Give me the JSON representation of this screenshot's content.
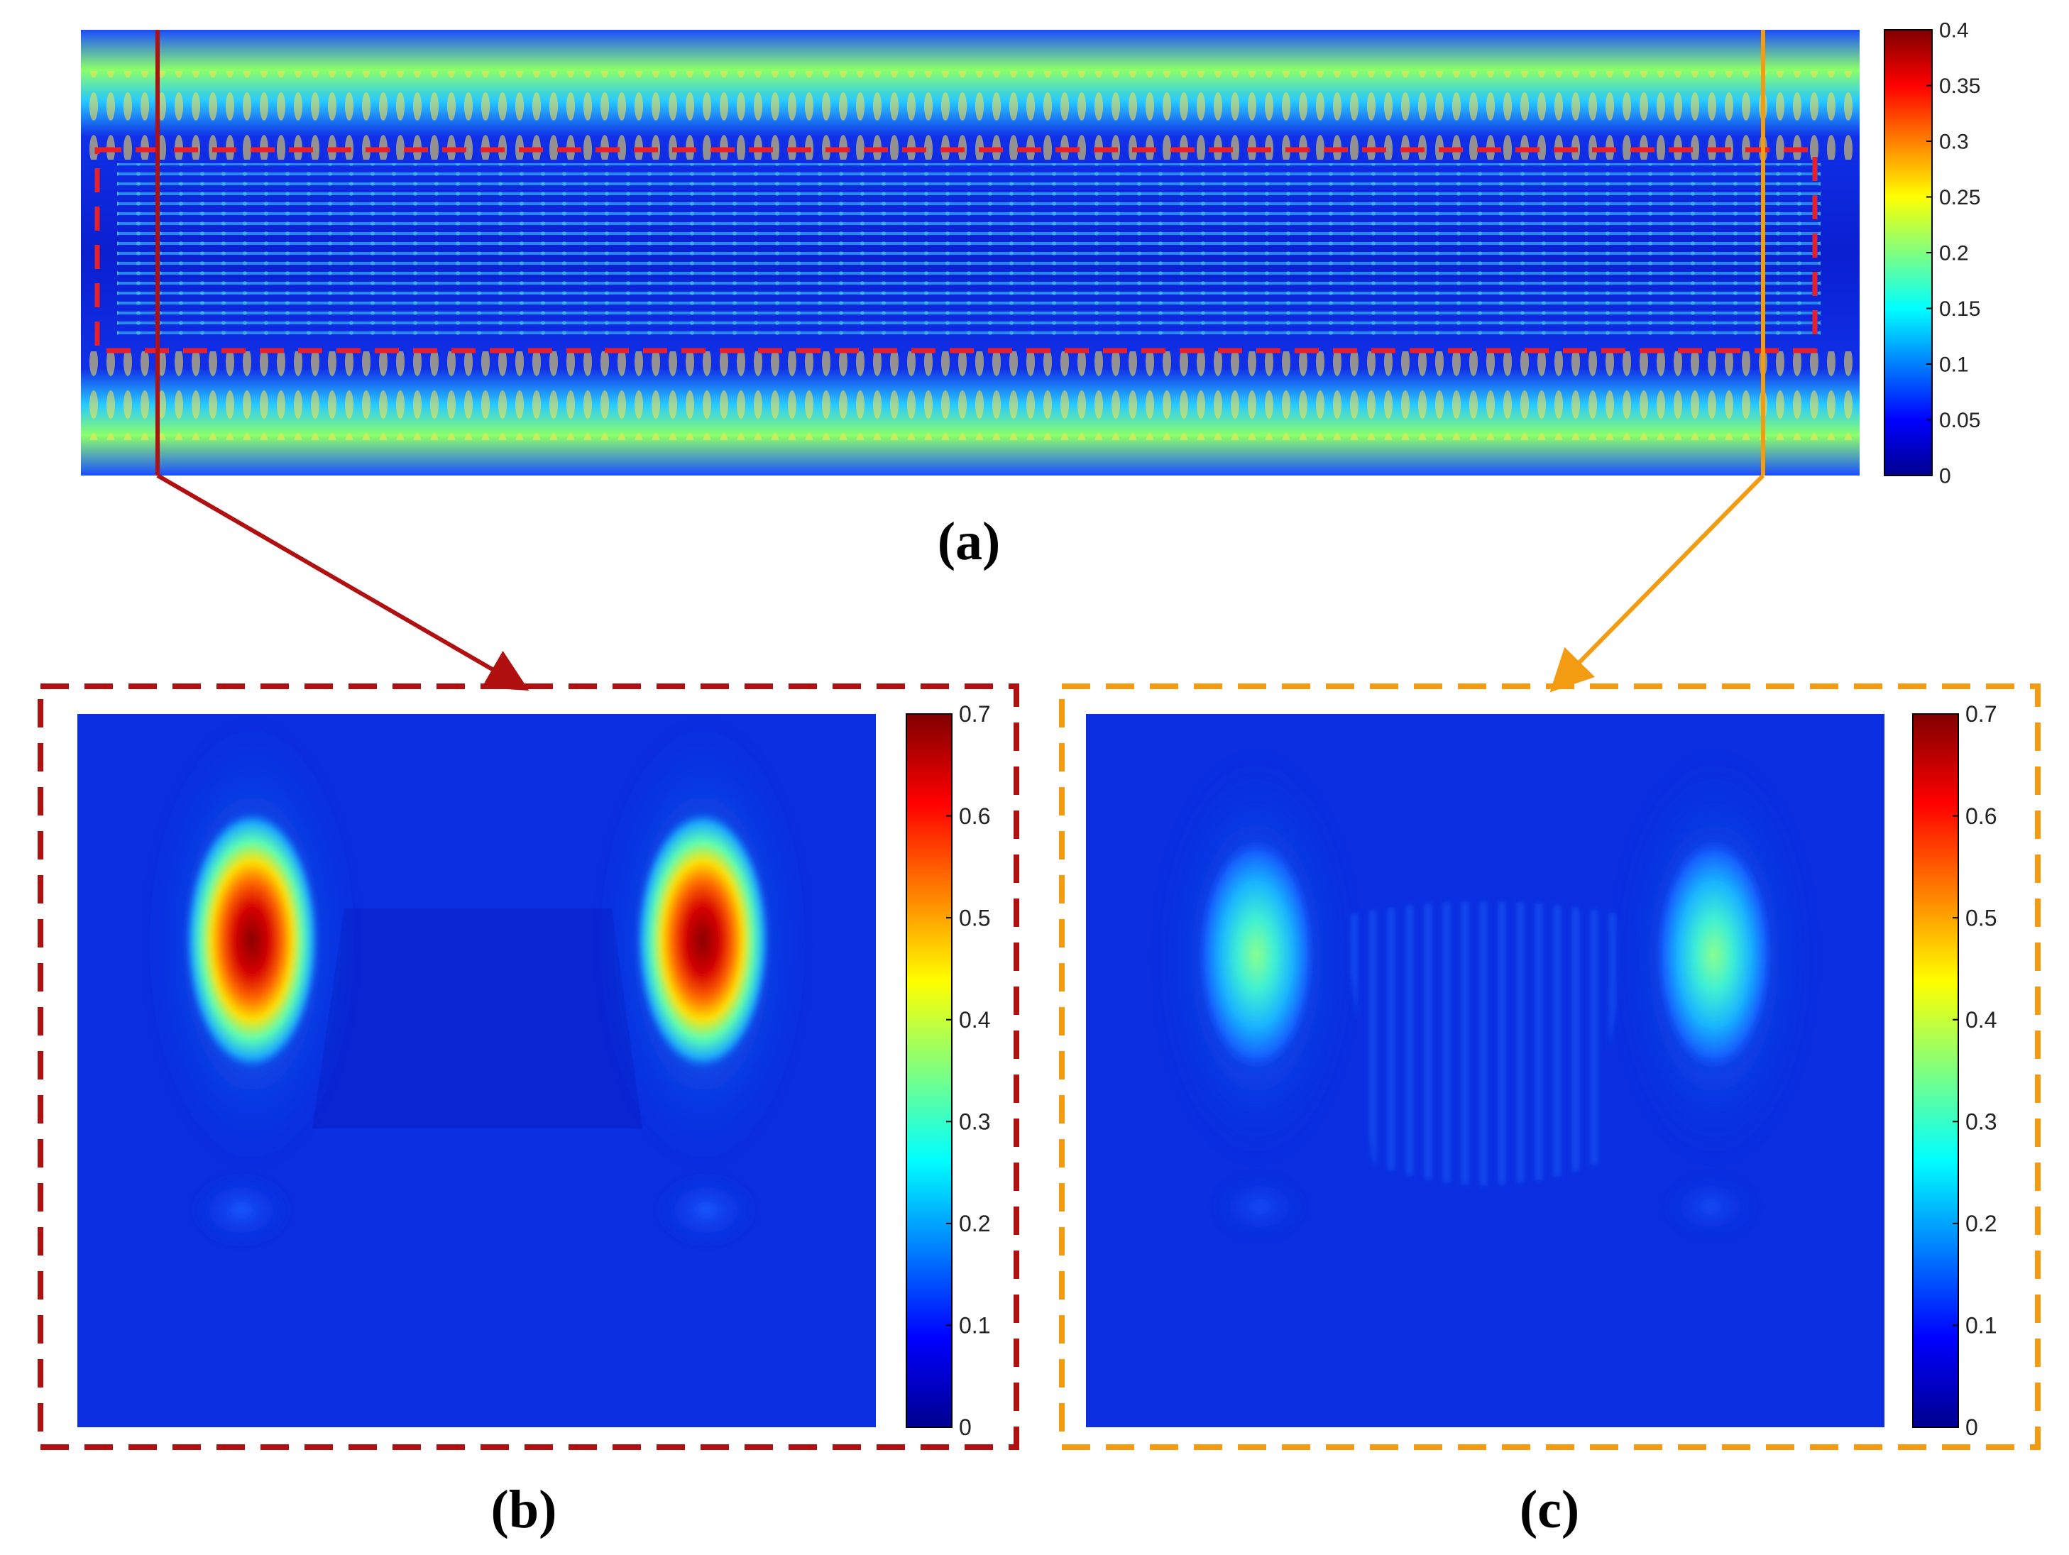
{
  "figure": {
    "panels": [
      {
        "id": "a",
        "caption": "(a)"
      },
      {
        "id": "b",
        "caption": "(b)"
      },
      {
        "id": "c",
        "caption": "(c)"
      }
    ]
  },
  "chart_data": [
    {
      "panel": "a",
      "type": "heatmap",
      "title": "",
      "xlabel": "",
      "ylabel": "",
      "colormap": "jet",
      "colorbar": {
        "min": 0,
        "max": 0.4,
        "ticks": [
          "0",
          "0.05",
          "0.1",
          "0.15",
          "0.2",
          "0.25",
          "0.3",
          "0.35",
          "0.4"
        ]
      },
      "description_features": {
        "outer_bands_level": 0.22,
        "interior_fringe_level": 0.12,
        "background_level": 0.03
      },
      "markers": [
        {
          "name": "left cut line",
          "color": "#b01010"
        },
        {
          "name": "right cut line",
          "color": "#f39c12"
        },
        {
          "name": "core region outline",
          "color": "#e8202a",
          "style": "dashed"
        }
      ]
    },
    {
      "panel": "b",
      "type": "heatmap",
      "title": "",
      "colormap": "jet",
      "colorbar": {
        "min": 0,
        "max": 0.7,
        "ticks": [
          "0",
          "0.1",
          "0.2",
          "0.3",
          "0.4",
          "0.5",
          "0.6",
          "0.7"
        ]
      },
      "peaks": [
        {
          "position": "left",
          "value": 0.7
        },
        {
          "position": "right",
          "value": 0.7
        }
      ],
      "frame_color": "#b01010"
    },
    {
      "panel": "c",
      "type": "heatmap",
      "title": "",
      "colormap": "jet",
      "colorbar": {
        "min": 0,
        "max": 0.7,
        "ticks": [
          "0",
          "0.1",
          "0.2",
          "0.3",
          "0.4",
          "0.5",
          "0.6",
          "0.7"
        ]
      },
      "peaks": [
        {
          "position": "left",
          "value": 0.32
        },
        {
          "position": "right",
          "value": 0.32
        }
      ],
      "frame_color": "#f39c12"
    }
  ],
  "colors": {
    "jet_stops": [
      "#00008f",
      "#0000ff",
      "#00ffff",
      "#ffff00",
      "#ff0000",
      "#800000"
    ],
    "red_dashed": "#e8202a",
    "dark_red": "#b01010",
    "orange": "#f39c12"
  }
}
